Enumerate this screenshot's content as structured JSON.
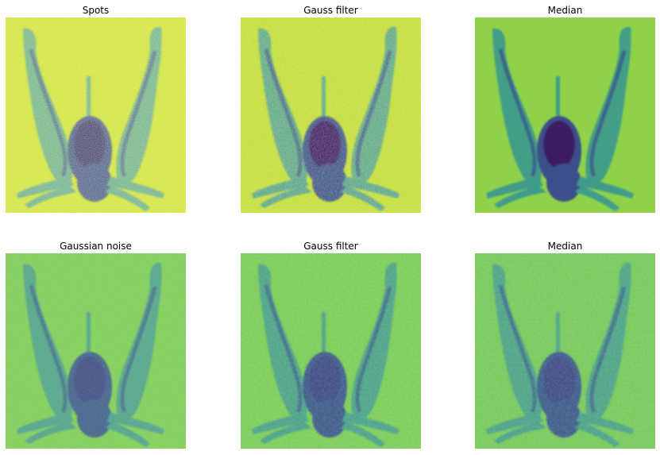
{
  "figure": {
    "panels": [
      {
        "title": "Spots",
        "bg": "#c9df2a",
        "mid": "#5aa58c",
        "dark": "#3a4f8a",
        "darkest": "#35306e",
        "noise": "spots"
      },
      {
        "title": "Gauss filter",
        "bg": "#bfdc35",
        "mid": "#55a18c",
        "dark": "#3a4f8a",
        "darkest": "#3a1f68",
        "noise": "spots-soft"
      },
      {
        "title": "Median",
        "bg": "#8fd24a",
        "mid": "#3f9b8a",
        "dark": "#3b4f8b",
        "darkest": "#3e1b63",
        "noise": "none"
      },
      {
        "title": "Gaussian noise",
        "bg": "#7bcb57",
        "mid": "#4a9f8b",
        "dark": "#3a5b8c",
        "darkest": "#3a4b86",
        "noise": "gauss"
      },
      {
        "title": "Gauss filter",
        "bg": "#79cb58",
        "mid": "#47a08b",
        "dark": "#3a5a8c",
        "darkest": "#3a4b86",
        "noise": "gauss-soft"
      },
      {
        "title": "Median",
        "bg": "#74c85b",
        "mid": "#46a08b",
        "dark": "#3a5a8c",
        "darkest": "#3a4b86",
        "noise": "gauss-soft"
      }
    ]
  }
}
